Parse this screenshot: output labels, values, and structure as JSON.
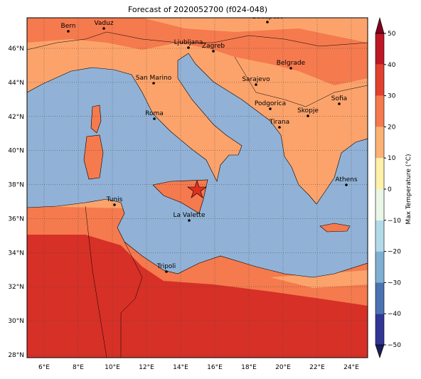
{
  "title": "Forecast of 2020052700 (f024-048)",
  "map": {
    "lon_ticks": [
      {
        "value": 6,
        "label": "6°E"
      },
      {
        "value": 8,
        "label": "8°E"
      },
      {
        "value": 10,
        "label": "10°E"
      },
      {
        "value": 12,
        "label": "12°E"
      },
      {
        "value": 14,
        "label": "14°E"
      },
      {
        "value": 16,
        "label": "16°E"
      },
      {
        "value": 18,
        "label": "18°E"
      },
      {
        "value": 20,
        "label": "20°E"
      },
      {
        "value": 22,
        "label": "22°E"
      },
      {
        "value": 24,
        "label": "24°E"
      }
    ],
    "lat_ticks": [
      {
        "value": 28,
        "label": "28°N"
      },
      {
        "value": 30,
        "label": "30°N"
      },
      {
        "value": 32,
        "label": "32°N"
      },
      {
        "value": 34,
        "label": "34°N"
      },
      {
        "value": 36,
        "label": "36°N"
      },
      {
        "value": 38,
        "label": "38°N"
      },
      {
        "value": 40,
        "label": "40°N"
      },
      {
        "value": 42,
        "label": "42°N"
      },
      {
        "value": 44,
        "label": "44°N"
      },
      {
        "value": 46,
        "label": "46°N"
      }
    ],
    "cities": [
      "Bern",
      "Vaduz",
      "Budapest",
      "Ljubljana",
      "Zagreb",
      "Belgrade",
      "San Marino",
      "Sarajevo",
      "Sofia",
      "Podgorica",
      "Skopje",
      "Roma",
      "Tirana",
      "Athens",
      "Tunis",
      "La Valette",
      "Tripoli"
    ]
  },
  "colorbar": {
    "label": "Max Temperature (°C)",
    "ticks": [
      {
        "value": -50,
        "label": "−50"
      },
      {
        "value": -40,
        "label": "−40"
      },
      {
        "value": -30,
        "label": "−30"
      },
      {
        "value": -20,
        "label": "−20"
      },
      {
        "value": -10,
        "label": "−10"
      },
      0,
      10,
      20,
      30,
      40,
      50
    ],
    "colors": [
      "#313695",
      "#4b73b3",
      "#7fb0d3",
      "#b4daea",
      "#e9f6e8",
      "#fff0aa",
      "#fcb275",
      "#f57a4e",
      "#e2412f",
      "#be1826"
    ]
  }
}
